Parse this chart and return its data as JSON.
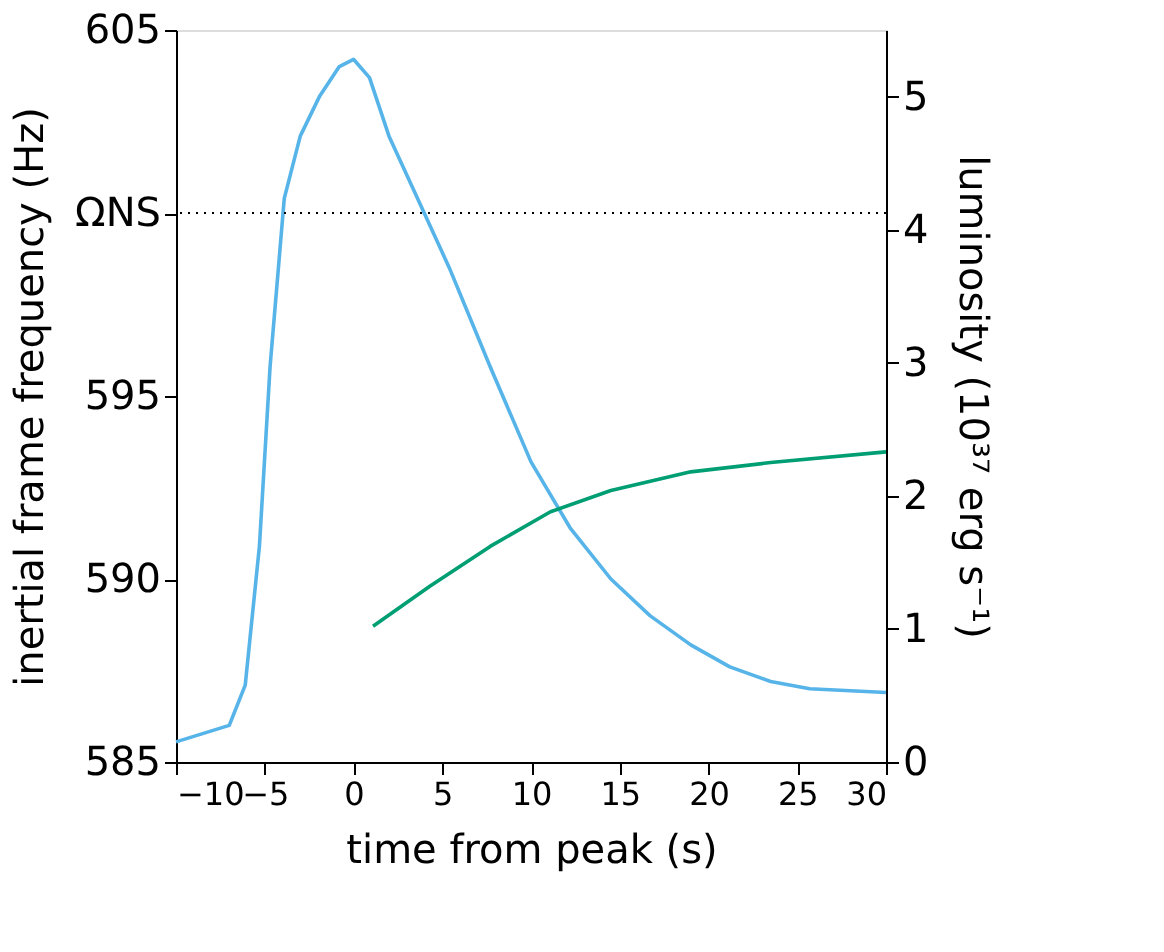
{
  "chart_data": {
    "type": "line",
    "xlabel": "time from peak (s)",
    "ylabel": "inertial frame frequency (Hz)",
    "y2label": "luminosity (10³⁷ erg s⁻¹)",
    "xlim": [
      -10,
      30
    ],
    "xticks": [
      -10,
      -5,
      0,
      5,
      10,
      15,
      20,
      25,
      30
    ],
    "ylim": [
      585,
      605
    ],
    "yticks": [
      585,
      590,
      595,
      {
        "value": 600,
        "label": "ΩNS"
      },
      605
    ],
    "y2lim": [
      0,
      5.5
    ],
    "y2ticks": [
      0,
      1,
      2,
      3,
      4,
      5
    ],
    "grid": false,
    "marker": "none",
    "line_style": "solid",
    "ref_lines": [
      {
        "axis": "y",
        "value": 600,
        "color": "#000000",
        "line_style": "dotted"
      }
    ],
    "series": [
      {
        "color": "#56b4e9",
        "x": [
          -10,
          -7,
          -6.1,
          -5.3,
          -4.7,
          -3.9,
          -3,
          -1.9,
          -0.8,
          0,
          0.9,
          2,
          3.7,
          5.4,
          7.7,
          10,
          12.2,
          14.5,
          16.7,
          19,
          21.2,
          23.5,
          25.7,
          30
        ],
        "values": [
          585.55,
          586.0,
          587.1,
          590.9,
          595.8,
          600.4,
          602.1,
          603.2,
          604.0,
          604.2,
          603.7,
          602.1,
          600.3,
          598.5,
          595.8,
          593.2,
          591.4,
          590.0,
          589.0,
          588.2,
          587.6,
          587.2,
          587.0,
          586.9
        ]
      },
      {
        "color": "#009e73",
        "axis": "y2",
        "x": [
          1.1,
          4.3,
          7.7,
          11.1,
          14.5,
          19,
          23.5,
          30
        ],
        "values": [
          1.02,
          1.32,
          1.62,
          1.88,
          2.04,
          2.18,
          2.25,
          2.33
        ]
      }
    ]
  }
}
